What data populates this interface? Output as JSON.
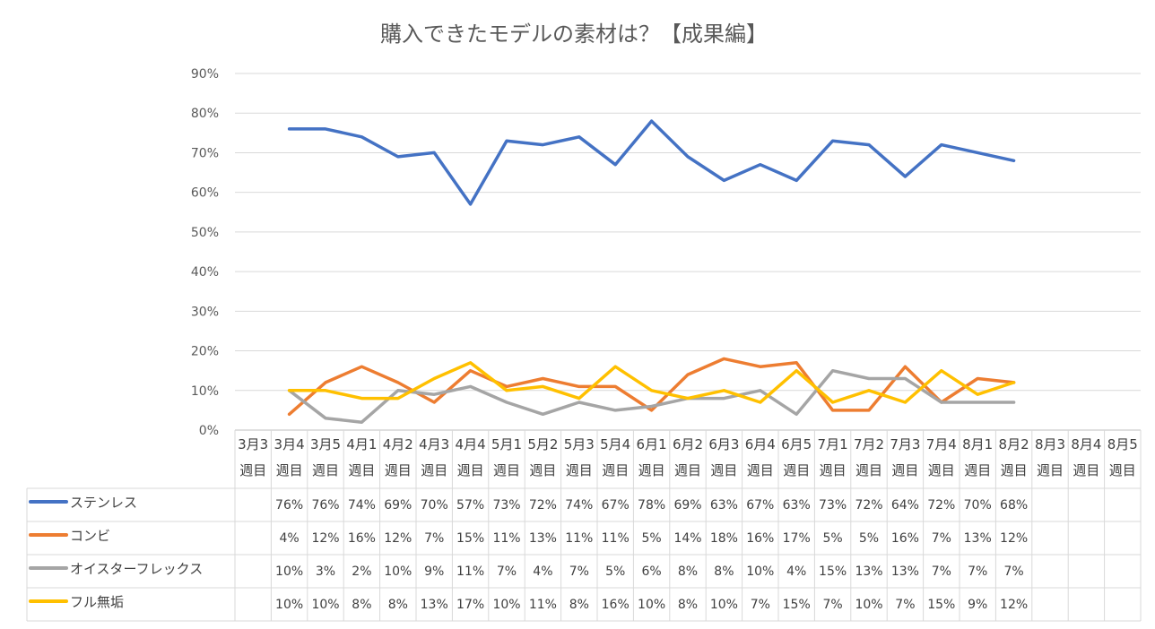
{
  "chart_data": {
    "type": "line",
    "title": "購入できたモデルの素材は？【成果編】",
    "ylim": [
      0,
      0.9
    ],
    "y_ticks": [
      "0%",
      "10%",
      "20%",
      "30%",
      "40%",
      "50%",
      "60%",
      "70%",
      "80%",
      "90%"
    ],
    "grid": true,
    "legend": "data-table",
    "categories": [
      [
        "3月3",
        "週目"
      ],
      [
        "3月4",
        "週目"
      ],
      [
        "3月5",
        "週目"
      ],
      [
        "4月1",
        "週目"
      ],
      [
        "4月2",
        "週目"
      ],
      [
        "4月3",
        "週目"
      ],
      [
        "4月4",
        "週目"
      ],
      [
        "5月1",
        "週目"
      ],
      [
        "5月2",
        "週目"
      ],
      [
        "5月3",
        "週目"
      ],
      [
        "5月4",
        "週目"
      ],
      [
        "6月1",
        "週目"
      ],
      [
        "6月2",
        "週目"
      ],
      [
        "6月3",
        "週目"
      ],
      [
        "6月4",
        "週目"
      ],
      [
        "6月5",
        "週目"
      ],
      [
        "7月1",
        "週目"
      ],
      [
        "7月2",
        "週目"
      ],
      [
        "7月3",
        "週目"
      ],
      [
        "7月4",
        "週目"
      ],
      [
        "8月1",
        "週目"
      ],
      [
        "8月2",
        "週目"
      ],
      [
        "8月3",
        "週目"
      ],
      [
        "8月4",
        "週目"
      ],
      [
        "8月5",
        "週目"
      ]
    ],
    "series": [
      {
        "name": "ステンレス",
        "color": "#4472C4",
        "values": [
          null,
          0.76,
          0.76,
          0.74,
          0.69,
          0.7,
          0.57,
          0.73,
          0.72,
          0.74,
          0.67,
          0.78,
          0.69,
          0.63,
          0.67,
          0.63,
          0.73,
          0.72,
          0.64,
          0.72,
          0.7,
          0.68,
          null,
          null,
          null
        ],
        "labels": [
          "",
          "76%",
          "76%",
          "74%",
          "69%",
          "70%",
          "57%",
          "73%",
          "72%",
          "74%",
          "67%",
          "78%",
          "69%",
          "63%",
          "67%",
          "63%",
          "73%",
          "72%",
          "64%",
          "72%",
          "70%",
          "68%",
          "",
          "",
          ""
        ]
      },
      {
        "name": "コンビ",
        "color": "#ED7D31",
        "values": [
          null,
          0.04,
          0.12,
          0.16,
          0.12,
          0.07,
          0.15,
          0.11,
          0.13,
          0.11,
          0.11,
          0.05,
          0.14,
          0.18,
          0.16,
          0.17,
          0.05,
          0.05,
          0.16,
          0.07,
          0.13,
          0.12,
          null,
          null,
          null
        ],
        "labels": [
          "",
          "4%",
          "12%",
          "16%",
          "12%",
          "7%",
          "15%",
          "11%",
          "13%",
          "11%",
          "11%",
          "5%",
          "14%",
          "18%",
          "16%",
          "17%",
          "5%",
          "5%",
          "16%",
          "7%",
          "13%",
          "12%",
          "",
          "",
          ""
        ]
      },
      {
        "name": "オイスターフレックス",
        "color": "#A5A5A5",
        "values": [
          null,
          0.1,
          0.03,
          0.02,
          0.1,
          0.09,
          0.11,
          0.07,
          0.04,
          0.07,
          0.05,
          0.06,
          0.08,
          0.08,
          0.1,
          0.04,
          0.15,
          0.13,
          0.13,
          0.07,
          0.07,
          0.07,
          null,
          null,
          null
        ],
        "labels": [
          "",
          "10%",
          "3%",
          "2%",
          "10%",
          "9%",
          "11%",
          "7%",
          "4%",
          "7%",
          "5%",
          "6%",
          "8%",
          "8%",
          "10%",
          "4%",
          "15%",
          "13%",
          "13%",
          "7%",
          "7%",
          "7%",
          "",
          "",
          ""
        ]
      },
      {
        "name": "フル無垢",
        "color": "#FFC000",
        "values": [
          null,
          0.1,
          0.1,
          0.08,
          0.08,
          0.13,
          0.17,
          0.1,
          0.11,
          0.08,
          0.16,
          0.1,
          0.08,
          0.1,
          0.07,
          0.15,
          0.07,
          0.1,
          0.07,
          0.15,
          0.09,
          0.12,
          null,
          null,
          null
        ],
        "labels": [
          "",
          "10%",
          "10%",
          "8%",
          "8%",
          "13%",
          "17%",
          "10%",
          "11%",
          "8%",
          "16%",
          "10%",
          "8%",
          "10%",
          "7%",
          "15%",
          "7%",
          "10%",
          "7%",
          "15%",
          "9%",
          "12%",
          "",
          "",
          ""
        ]
      }
    ]
  }
}
